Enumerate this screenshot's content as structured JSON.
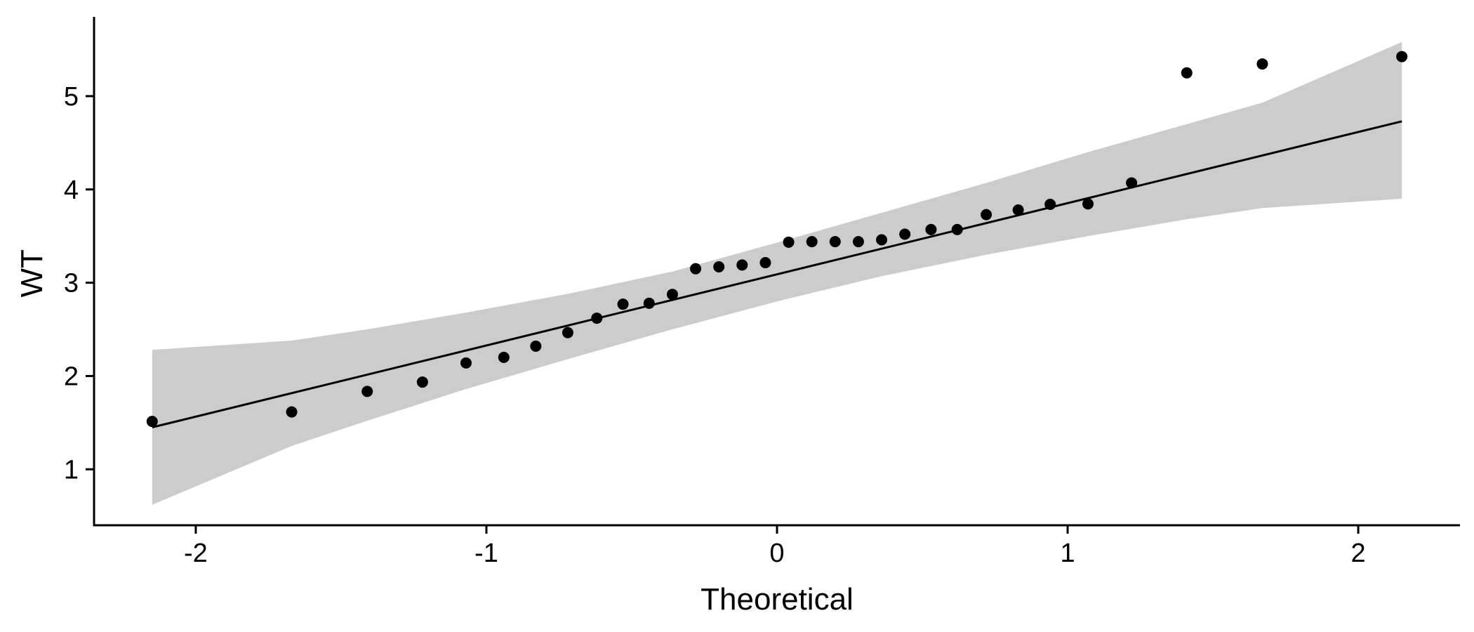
{
  "chart_data": {
    "type": "scatter",
    "subtype": "qq-plot",
    "title": "",
    "xlabel": "Theoretical",
    "ylabel": "WT",
    "xlim": [
      -2.35,
      2.35
    ],
    "ylim": [
      0.4,
      5.85
    ],
    "xticks": [
      -2,
      -1,
      0,
      1,
      2
    ],
    "yticks": [
      1,
      2,
      3,
      4,
      5
    ],
    "xtick_labels": [
      "-2",
      "-1",
      "0",
      "1",
      "2"
    ],
    "ytick_labels": [
      "1",
      "2",
      "3",
      "4",
      "5"
    ],
    "grid": false,
    "legend": "none",
    "colors": {
      "points": "#000000",
      "line": "#000000",
      "band": "#cccccc",
      "axis": "#000000"
    },
    "points": [
      {
        "x": -2.15,
        "y": 1.513
      },
      {
        "x": -1.67,
        "y": 1.615
      },
      {
        "x": -1.41,
        "y": 1.835
      },
      {
        "x": -1.22,
        "y": 1.935
      },
      {
        "x": -1.07,
        "y": 2.14
      },
      {
        "x": -0.94,
        "y": 2.2
      },
      {
        "x": -0.83,
        "y": 2.32
      },
      {
        "x": -0.72,
        "y": 2.465
      },
      {
        "x": -0.62,
        "y": 2.62
      },
      {
        "x": -0.53,
        "y": 2.77
      },
      {
        "x": -0.44,
        "y": 2.78
      },
      {
        "x": -0.36,
        "y": 2.875
      },
      {
        "x": -0.28,
        "y": 3.15
      },
      {
        "x": -0.2,
        "y": 3.17
      },
      {
        "x": -0.12,
        "y": 3.19
      },
      {
        "x": -0.04,
        "y": 3.215
      },
      {
        "x": 0.04,
        "y": 3.435
      },
      {
        "x": 0.12,
        "y": 3.44
      },
      {
        "x": 0.2,
        "y": 3.44
      },
      {
        "x": 0.28,
        "y": 3.44
      },
      {
        "x": 0.36,
        "y": 3.46
      },
      {
        "x": 0.44,
        "y": 3.52
      },
      {
        "x": 0.53,
        "y": 3.57
      },
      {
        "x": 0.62,
        "y": 3.57
      },
      {
        "x": 0.72,
        "y": 3.73
      },
      {
        "x": 0.83,
        "y": 3.78
      },
      {
        "x": 0.94,
        "y": 3.84
      },
      {
        "x": 1.07,
        "y": 3.845
      },
      {
        "x": 1.22,
        "y": 4.07
      },
      {
        "x": 1.41,
        "y": 5.25
      },
      {
        "x": 1.67,
        "y": 5.345
      },
      {
        "x": 2.15,
        "y": 5.424
      }
    ],
    "reference_line": {
      "x": [
        -2.15,
        2.15
      ],
      "y": [
        1.45,
        4.73
      ]
    },
    "confidence_band": [
      {
        "x": -2.15,
        "lower": 0.62,
        "upper": 2.28
      },
      {
        "x": -1.67,
        "lower": 1.25,
        "upper": 2.38
      },
      {
        "x": -1.41,
        "lower": 1.52,
        "upper": 2.5
      },
      {
        "x": -1.07,
        "lower": 1.86,
        "upper": 2.68
      },
      {
        "x": -0.72,
        "lower": 2.18,
        "upper": 2.88
      },
      {
        "x": -0.36,
        "lower": 2.5,
        "upper": 3.12
      },
      {
        "x": 0.0,
        "lower": 2.8,
        "upper": 3.43
      },
      {
        "x": 0.36,
        "lower": 3.07,
        "upper": 3.75
      },
      {
        "x": 0.72,
        "lower": 3.3,
        "upper": 4.07
      },
      {
        "x": 1.07,
        "lower": 3.5,
        "upper": 4.4
      },
      {
        "x": 1.41,
        "lower": 3.68,
        "upper": 4.7
      },
      {
        "x": 1.67,
        "lower": 3.8,
        "upper": 4.93
      },
      {
        "x": 2.15,
        "lower": 3.9,
        "upper": 5.58
      }
    ]
  }
}
